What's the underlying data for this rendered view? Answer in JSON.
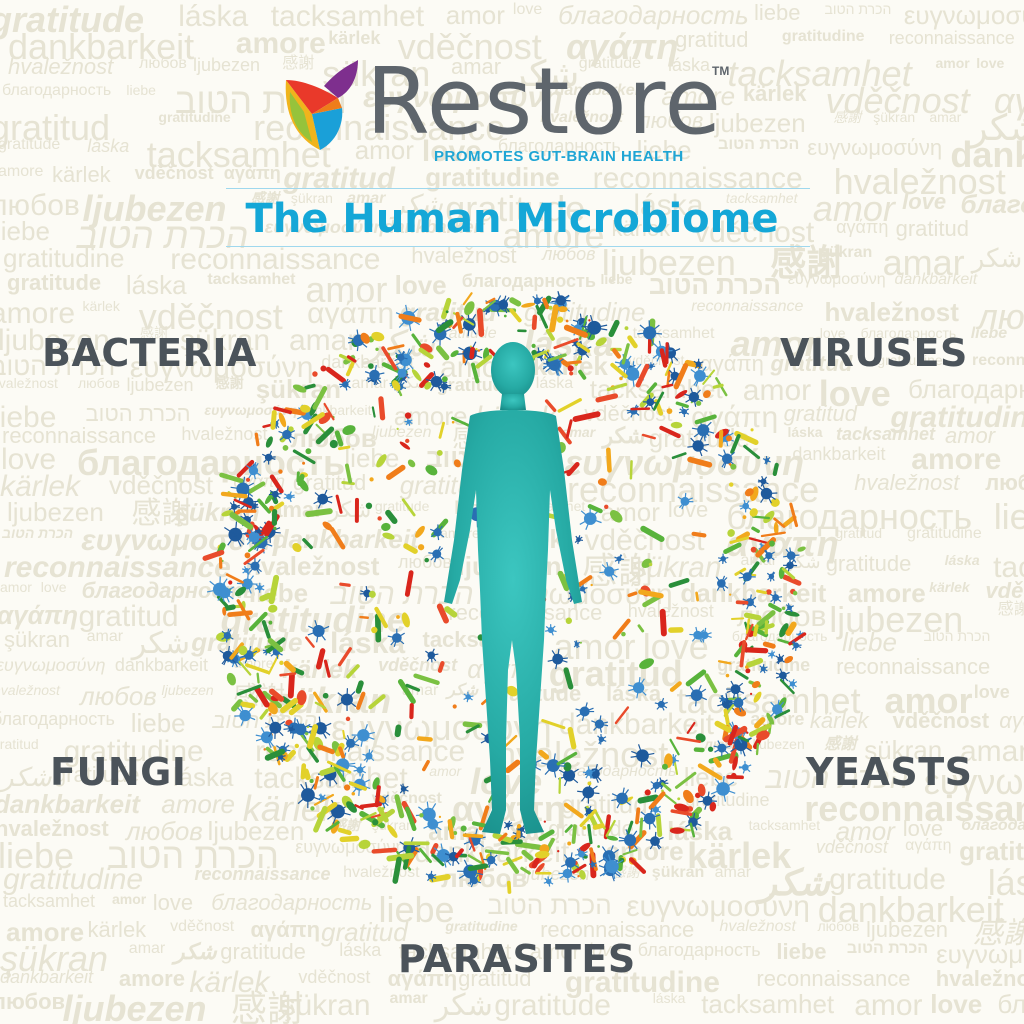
{
  "brand": {
    "name": "Restore",
    "trademark": "TM",
    "tagline": "PROMOTES GUT-BRAIN HEALTH"
  },
  "title": "The Human Microbiome",
  "labels": {
    "bacteria": "BACTERIA",
    "viruses": "VIRUSES",
    "fungi": "FUNGI",
    "yeasts": "YEASTS",
    "parasites": "PARASITES"
  },
  "background_words": [
    "gratitude",
    "láska",
    "tacksamhet",
    "amor",
    "love",
    "благодарность",
    "liebe",
    "הכרת הטוב",
    "ευγνωμοσύνη",
    "dankbarkeit",
    "amore",
    "kärlek",
    "vděčnost",
    "αγάπη",
    "gratitud",
    "gratitudine",
    "reconnaissance",
    "hvaležnost",
    "любов",
    "ljubezen",
    "感謝",
    "şükran",
    "amar",
    "شكر"
  ],
  "colors": {
    "title": "#14a7d7",
    "labels": "#4b535a",
    "brand_text": "#5e656c",
    "human_figure": "#2bb3ad",
    "background": "#fcfbf5",
    "watermark": "#e6e3d3"
  },
  "icons": [
    "leaf-logo-icon",
    "human-figure-icon"
  ]
}
